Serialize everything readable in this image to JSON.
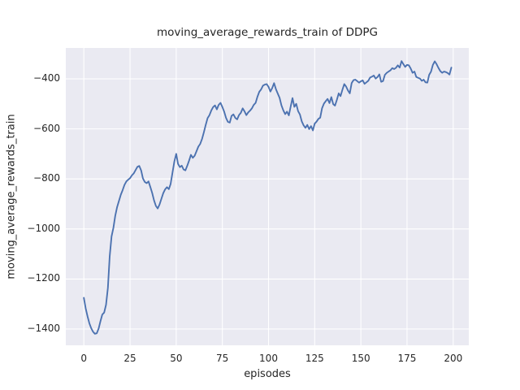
{
  "chart_data": {
    "type": "line",
    "title": "moving_average_rewards_train of DDPG",
    "xlabel": "episodes",
    "ylabel": "moving_average_rewards_train",
    "legend": false,
    "grid": true,
    "x_start": 0,
    "x_step": 1,
    "xlim": [
      -9.77,
      208.45
    ],
    "ylim": [
      -1465,
      -276.5
    ],
    "xticks": {
      "values": [
        0,
        25,
        50,
        75,
        100,
        125,
        150,
        175,
        200
      ],
      "labels": [
        "0",
        "25",
        "50",
        "75",
        "100",
        "125",
        "150",
        "175",
        "200"
      ]
    },
    "yticks": {
      "values": [
        -400,
        -600,
        -800,
        -1000,
        -1200,
        -1400
      ],
      "labels": [
        "−400",
        "−600",
        "−800",
        "−1000",
        "−1200",
        "−1400"
      ]
    },
    "series": [
      {
        "name": "moving_average_rewards_train",
        "color": "#4c72b0",
        "values": [
          -1275,
          -1318,
          -1350,
          -1377,
          -1397,
          -1411,
          -1419,
          -1417,
          -1398,
          -1368,
          -1342,
          -1334,
          -1303,
          -1235,
          -1110,
          -1030,
          -995,
          -948,
          -913,
          -888,
          -863,
          -845,
          -824,
          -810,
          -803,
          -797,
          -786,
          -778,
          -765,
          -752,
          -748,
          -766,
          -798,
          -812,
          -817,
          -810,
          -832,
          -856,
          -886,
          -908,
          -918,
          -902,
          -879,
          -857,
          -842,
          -833,
          -841,
          -820,
          -775,
          -730,
          -700,
          -740,
          -753,
          -747,
          -762,
          -766,
          -747,
          -726,
          -704,
          -716,
          -707,
          -689,
          -671,
          -660,
          -640,
          -614,
          -584,
          -557,
          -545,
          -527,
          -513,
          -506,
          -522,
          -504,
          -496,
          -513,
          -531,
          -556,
          -572,
          -575,
          -548,
          -542,
          -556,
          -562,
          -545,
          -536,
          -518,
          -530,
          -545,
          -534,
          -527,
          -518,
          -504,
          -496,
          -471,
          -452,
          -442,
          -427,
          -423,
          -421,
          -432,
          -451,
          -437,
          -417,
          -441,
          -459,
          -476,
          -506,
          -526,
          -541,
          -531,
          -546,
          -510,
          -477,
          -512,
          -500,
          -529,
          -542,
          -570,
          -586,
          -596,
          -584,
          -601,
          -589,
          -606,
          -579,
          -571,
          -560,
          -555,
          -517,
          -499,
          -489,
          -480,
          -497,
          -473,
          -501,
          -507,
          -484,
          -458,
          -469,
          -444,
          -421,
          -431,
          -446,
          -458,
          -417,
          -405,
          -403,
          -409,
          -415,
          -410,
          -406,
          -420,
          -414,
          -408,
          -395,
          -391,
          -387,
          -399,
          -393,
          -382,
          -412,
          -409,
          -384,
          -376,
          -371,
          -366,
          -357,
          -361,
          -356,
          -346,
          -355,
          -329,
          -341,
          -352,
          -344,
          -346,
          -359,
          -376,
          -371,
          -392,
          -396,
          -399,
          -408,
          -403,
          -414,
          -415,
          -384,
          -371,
          -344,
          -330,
          -341,
          -356,
          -369,
          -376,
          -371,
          -373,
          -377,
          -383,
          -355
        ]
      }
    ],
    "style": {
      "figure_bg": "#ffffff",
      "plot_bg": "#eaeaf2",
      "grid_color": "#ffffff",
      "text_color": "#262626",
      "line_color": "#4c72b0"
    }
  }
}
